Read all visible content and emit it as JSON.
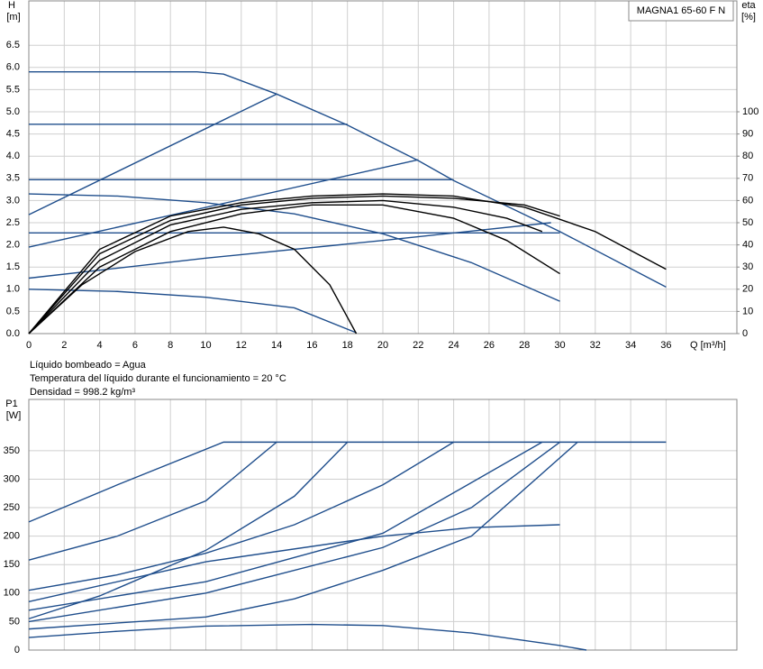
{
  "chart_data": [
    {
      "type": "line",
      "title": "MAGNA1 65-60 F N",
      "ylabel": "H",
      "yunit": "[m]",
      "y2label": "eta",
      "y2unit": "[%]",
      "xlabel": "Q [m³/h]",
      "xlim": [
        0,
        40
      ],
      "xticks": [
        0,
        2,
        4,
        6,
        8,
        10,
        12,
        14,
        16,
        18,
        20,
        22,
        24,
        26,
        28,
        30,
        32,
        34,
        36
      ],
      "ylim": [
        0,
        7.5
      ],
      "yticks": [
        {
          "value": 0,
          "label": "0.0"
        },
        0.5,
        {
          "value": 1,
          "label": "1.0"
        },
        1.5,
        {
          "value": 2,
          "label": "2.0"
        },
        2.5,
        {
          "value": 3,
          "label": "3.0"
        },
        3.5,
        {
          "value": 4,
          "label": "4.0"
        },
        4.5,
        {
          "value": 5,
          "label": "5.0"
        },
        5.5,
        {
          "value": 6,
          "label": "6.0"
        },
        6.5
      ],
      "y2lim": [
        0,
        150
      ],
      "y2ticks": [
        0,
        10,
        20,
        30,
        40,
        50,
        60,
        70,
        80,
        90,
        100
      ],
      "grid": true,
      "show_xtick_labels": true,
      "series": [
        {
          "color": "#1f4e8c",
          "x": [
            0,
            9.5,
            11,
            14,
            18,
            22,
            24,
            30,
            36
          ],
          "values": [
            5.9,
            5.9,
            5.85,
            5.4,
            4.7,
            3.9,
            3.45,
            2.3,
            1.05
          ]
        },
        {
          "color": "#1f4e8c",
          "x": [
            0,
            18
          ],
          "values": [
            4.72,
            4.72
          ]
        },
        {
          "color": "#1f4e8c",
          "x": [
            0,
            24
          ],
          "values": [
            3.47,
            3.47
          ]
        },
        {
          "color": "#1f4e8c",
          "x": [
            0,
            30
          ],
          "values": [
            2.27,
            2.27
          ]
        },
        {
          "color": "#1f4e8c",
          "x": [
            0,
            14
          ],
          "values": [
            2.68,
            5.4
          ]
        },
        {
          "color": "#1f4e8c",
          "x": [
            0,
            22
          ],
          "values": [
            1.95,
            3.92
          ]
        },
        {
          "color": "#1f4e8c",
          "x": [
            0,
            10,
            20,
            29.5
          ],
          "values": [
            1.25,
            1.7,
            2.1,
            2.5
          ]
        },
        {
          "color": "#1f4e8c",
          "x": [
            0,
            5,
            10,
            15,
            20,
            25,
            30
          ],
          "values": [
            3.15,
            3.1,
            2.95,
            2.7,
            2.25,
            1.6,
            0.73
          ]
        },
        {
          "color": "#1f4e8c",
          "x": [
            0,
            5,
            10,
            15,
            18.5
          ],
          "values": [
            1.0,
            0.95,
            0.82,
            0.58,
            0.02
          ]
        },
        {
          "color": "#000000",
          "axis": "y2",
          "x": [
            0,
            3,
            6,
            9,
            11,
            13,
            15,
            17,
            18.5
          ],
          "values": [
            0,
            22,
            37,
            46,
            48,
            45,
            38,
            22,
            0
          ]
        },
        {
          "color": "#000000",
          "axis": "y2",
          "x": [
            0,
            4,
            8,
            12,
            16,
            20,
            24,
            27,
            30
          ],
          "values": [
            0,
            30,
            46,
            54,
            58,
            58,
            52,
            42,
            27
          ]
        },
        {
          "color": "#000000",
          "axis": "y2",
          "x": [
            0,
            4,
            8,
            12,
            16,
            20,
            24,
            27,
            29
          ],
          "values": [
            0,
            33,
            49,
            56,
            59,
            60,
            57,
            52,
            46
          ]
        },
        {
          "color": "#000000",
          "axis": "y2",
          "x": [
            0,
            4,
            8,
            12,
            16,
            20,
            24,
            28,
            30
          ],
          "values": [
            0,
            36,
            51,
            58,
            61,
            62,
            61,
            58,
            53
          ]
        },
        {
          "color": "#000000",
          "axis": "y2",
          "x": [
            0,
            4,
            8,
            12,
            16,
            20,
            24,
            28,
            32,
            36
          ],
          "values": [
            0,
            38,
            53,
            59,
            62,
            63,
            62,
            57,
            46,
            29
          ]
        }
      ]
    },
    {
      "type": "line",
      "ylabel": "P1",
      "yunit": "[W]",
      "xlim": [
        0,
        40
      ],
      "xticks": [
        0,
        2,
        4,
        6,
        8,
        10,
        12,
        14,
        16,
        18,
        20,
        22,
        24,
        26,
        28,
        30,
        32,
        34,
        36
      ],
      "ylim": [
        0,
        440
      ],
      "yticks": [
        0,
        50,
        100,
        150,
        200,
        250,
        300,
        350
      ],
      "grid": true,
      "show_xtick_labels": false,
      "series": [
        {
          "color": "#1f4e8c",
          "x": [
            0,
            5,
            11,
            36
          ],
          "values": [
            225,
            290,
            365,
            365
          ]
        },
        {
          "color": "#1f4e8c",
          "x": [
            0,
            5,
            10,
            14
          ],
          "values": [
            158,
            200,
            262,
            365
          ]
        },
        {
          "color": "#1f4e8c",
          "x": [
            0,
            5,
            10,
            15,
            20,
            24
          ],
          "values": [
            105,
            132,
            170,
            220,
            290,
            365
          ]
        },
        {
          "color": "#1f4e8c",
          "x": [
            0,
            4,
            10,
            15,
            18
          ],
          "values": [
            55,
            95,
            175,
            270,
            365
          ]
        },
        {
          "color": "#1f4e8c",
          "x": [
            0,
            10,
            20,
            29
          ],
          "values": [
            70,
            120,
            205,
            365
          ]
        },
        {
          "color": "#1f4e8c",
          "x": [
            0,
            10,
            20,
            25,
            30
          ],
          "values": [
            50,
            100,
            180,
            250,
            365
          ]
        },
        {
          "color": "#1f4e8c",
          "x": [
            0,
            10,
            15,
            20,
            25,
            31
          ],
          "values": [
            37,
            58,
            90,
            140,
            200,
            365
          ]
        },
        {
          "color": "#1f4e8c",
          "x": [
            0,
            10,
            20,
            25,
            30
          ],
          "values": [
            85,
            155,
            200,
            215,
            220
          ]
        },
        {
          "color": "#1f4e8c",
          "x": [
            0,
            5,
            10,
            16,
            20,
            25,
            30,
            31.5
          ],
          "values": [
            22,
            33,
            42,
            45,
            43,
            30,
            8,
            0
          ]
        }
      ]
    }
  ],
  "fluid_info": [
    "Líquido bombeado = Agua",
    "Temperatura del líquido durante el funcionamiento = 20 °C",
    "Densidad = 998.2 kg/m³"
  ]
}
